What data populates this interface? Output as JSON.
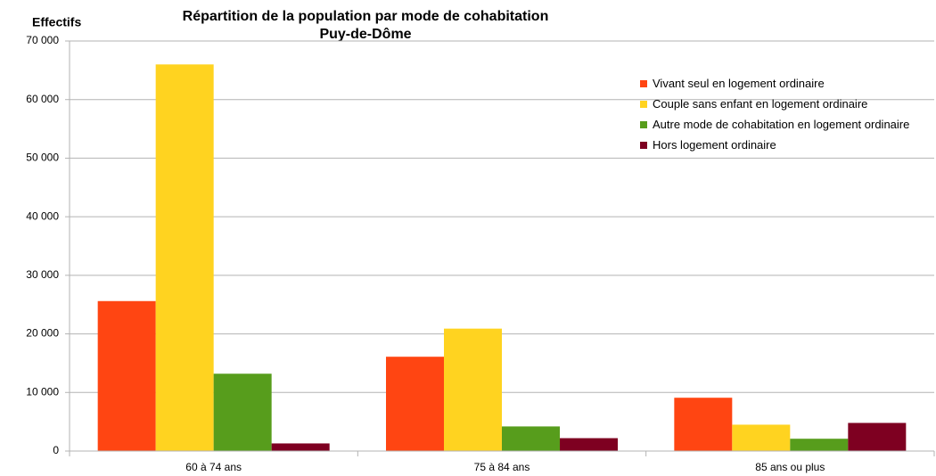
{
  "chart_data": {
    "type": "bar",
    "title": "Répartition de la population par mode de cohabitation",
    "subtitle": "Puy-de-Dôme",
    "y_label": "Effectifs",
    "categories": [
      "60 à 74 ans",
      "75 à 84 ans",
      "85 ans ou plus"
    ],
    "series": [
      {
        "name": "Vivant seul en logement ordinaire",
        "color": "#ff4512",
        "values": [
          25600,
          16100,
          9100
        ]
      },
      {
        "name": "Couple sans enfant en logement ordinaire",
        "color": "#ffd320",
        "values": [
          66000,
          20900,
          4500
        ]
      },
      {
        "name": "Autre mode de cohabitation en logement ordinaire",
        "color": "#579d1c",
        "values": [
          13200,
          4200,
          2100
        ]
      },
      {
        "name": "Hors logement ordinaire",
        "color": "#7e0021",
        "values": [
          1300,
          2200,
          4800
        ]
      }
    ],
    "ylim": [
      0,
      70000
    ],
    "yticks": [
      0,
      {
        "value": 10000,
        "label": "10 000"
      },
      {
        "value": 20000,
        "label": "20 000"
      },
      {
        "value": 30000,
        "label": "30 000"
      },
      {
        "value": 40000,
        "label": "40 000"
      },
      {
        "value": 50000,
        "label": "50 000"
      },
      {
        "value": 60000,
        "label": "60 000"
      },
      {
        "value": 70000,
        "label": "70 000"
      }
    ],
    "grid": true,
    "legend": "upper right"
  }
}
